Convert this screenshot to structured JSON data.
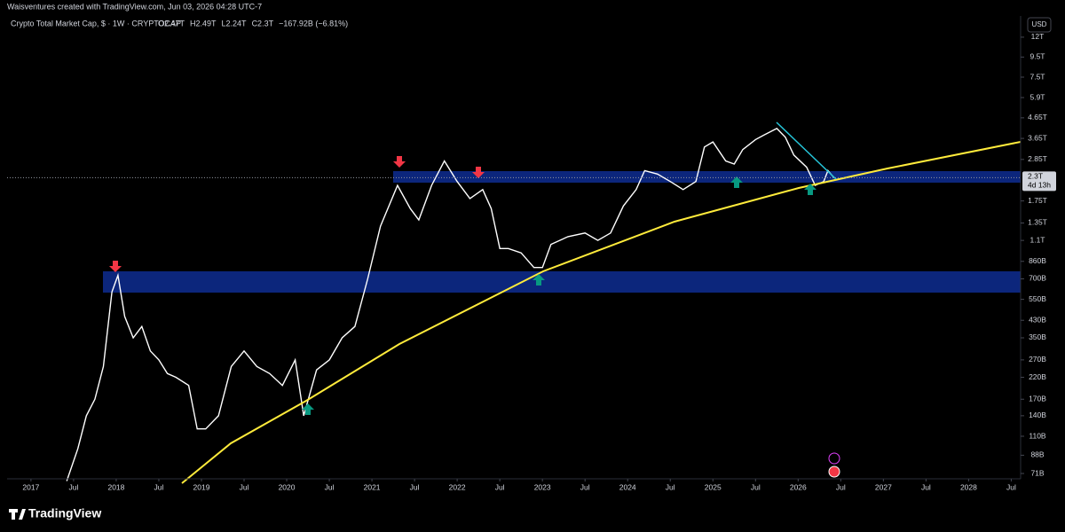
{
  "header": {
    "text": "Waisventures created with TradingView.com, Jun 03, 2026 04:28 UTC-7"
  },
  "chart_data": {
    "type": "line",
    "title": "Crypto Total Market Cap, $ · 1W · CRYPTOCAP",
    "ohlc": [
      "O2.47T",
      "H2.49T",
      "L2.24T",
      "C2.3T",
      "−167.92B (−6.81%)"
    ],
    "currency": "USD",
    "color": "#ffffff",
    "log_scale": true,
    "x": [
      2017.42,
      2017.55,
      2017.65,
      2017.75,
      2017.85,
      2017.95,
      2018.02,
      2018.1,
      2018.2,
      2018.3,
      2018.4,
      2018.5,
      2018.6,
      2018.7,
      2018.85,
      2018.95,
      2019.05,
      2019.2,
      2019.35,
      2019.5,
      2019.65,
      2019.8,
      2019.95,
      2020.1,
      2020.2,
      2020.35,
      2020.5,
      2020.65,
      2020.8,
      2020.95,
      2021.1,
      2021.3,
      2021.45,
      2021.55,
      2021.7,
      2021.85,
      2022.0,
      2022.15,
      2022.3,
      2022.4,
      2022.5,
      2022.6,
      2022.75,
      2022.9,
      2023.0,
      2023.1,
      2023.3,
      2023.5,
      2023.65,
      2023.8,
      2023.95,
      2024.1,
      2024.2,
      2024.35,
      2024.5,
      2024.65,
      2024.8,
      2024.9,
      2025.0,
      2025.15,
      2025.25,
      2025.35,
      2025.5,
      2025.6,
      2025.75,
      2025.85,
      2025.95,
      2026.1,
      2026.2,
      2026.3,
      2026.35,
      2026.42
    ],
    "values": [
      65,
      95,
      140,
      170,
      250,
      600,
      730,
      450,
      350,
      400,
      300,
      270,
      230,
      220,
      200,
      120,
      120,
      140,
      250,
      300,
      250,
      230,
      200,
      270,
      140,
      240,
      270,
      350,
      400,
      700,
      1300,
      2100,
      1600,
      1400,
      2100,
      2800,
      2200,
      1800,
      2000,
      1600,
      1000,
      1000,
      950,
      800,
      800,
      1050,
      1150,
      1200,
      1100,
      1200,
      1650,
      2000,
      2500,
      2400,
      2200,
      2000,
      2200,
      3300,
      3500,
      2800,
      2700,
      3200,
      3600,
      3800,
      4100,
      3700,
      3000,
      2600,
      2100,
      2200,
      2500,
      2300
    ],
    "last_price": 2300,
    "last_price_label": "2.3T",
    "countdown": "4d 13h",
    "xlim": [
      2016.72,
      2028.61
    ],
    "xticks": [
      {
        "value": 2017,
        "label": "2017"
      },
      {
        "value": 2017.5,
        "label": "Jul"
      },
      {
        "value": 2018,
        "label": "2018"
      },
      {
        "value": 2018.5,
        "label": "Jul"
      },
      {
        "value": 2019,
        "label": "2019"
      },
      {
        "value": 2019.5,
        "label": "Jul"
      },
      {
        "value": 2020,
        "label": "2020"
      },
      {
        "value": 2020.5,
        "label": "Jul"
      },
      {
        "value": 2021,
        "label": "2021"
      },
      {
        "value": 2021.5,
        "label": "Jul"
      },
      {
        "value": 2022,
        "label": "2022"
      },
      {
        "value": 2022.5,
        "label": "Jul"
      },
      {
        "value": 2023,
        "label": "2023"
      },
      {
        "value": 2023.5,
        "label": "Jul"
      },
      {
        "value": 2024,
        "label": "2024"
      },
      {
        "value": 2024.5,
        "label": "Jul"
      },
      {
        "value": 2025,
        "label": "2025"
      },
      {
        "value": 2025.5,
        "label": "Jul"
      },
      {
        "value": 2026,
        "label": "2026"
      },
      {
        "value": 2026.5,
        "label": "Jul"
      },
      {
        "value": 2027,
        "label": "2027"
      },
      {
        "value": 2027.5,
        "label": "Jul"
      },
      {
        "value": 2028,
        "label": "2028"
      },
      {
        "value": 2028.5,
        "label": "Jul"
      }
    ],
    "ylim": [
      66.7,
      15400
    ],
    "yticks": [
      {
        "value": 12000,
        "label": "12T"
      },
      {
        "value": 9500,
        "label": "9.5T"
      },
      {
        "value": 7500,
        "label": "7.5T"
      },
      {
        "value": 5900,
        "label": "5.9T"
      },
      {
        "value": 4650,
        "label": "4.65T"
      },
      {
        "value": 3650,
        "label": "3.65T"
      },
      {
        "value": 2850,
        "label": "2.85T"
      },
      {
        "value": 1750,
        "label": "1.75T"
      },
      {
        "value": 1350,
        "label": "1.35T"
      },
      {
        "value": 1100,
        "label": "1.1T"
      },
      {
        "value": 860,
        "label": "860B"
      },
      {
        "value": 700,
        "label": "700B"
      },
      {
        "value": 550,
        "label": "550B"
      },
      {
        "value": 430,
        "label": "430B"
      },
      {
        "value": 350,
        "label": "350B"
      },
      {
        "value": 270,
        "label": "270B"
      },
      {
        "value": 220,
        "label": "220B"
      },
      {
        "value": 170,
        "label": "170B"
      },
      {
        "value": 140,
        "label": "140B"
      },
      {
        "value": 110,
        "label": "110B"
      },
      {
        "value": 88,
        "label": "88B"
      },
      {
        "value": 71,
        "label": "71B"
      }
    ]
  },
  "footer": {
    "brand": "TradingView"
  }
}
